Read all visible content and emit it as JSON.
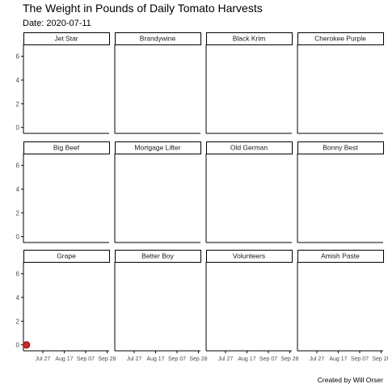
{
  "title": "The Weight in Pounds of Daily Tomato Harvests",
  "subtitle": "Date: 2020-07-11",
  "caption": "Created by Will Orser",
  "colors": {
    "point": "#cc0000",
    "axis": "#000000",
    "strip_border": "#000000",
    "tick_text": "#4d4d4d"
  },
  "chart_data": {
    "type": "scatter",
    "facet_layout": {
      "rows": 3,
      "cols": 4
    },
    "facets": [
      {
        "name": "Jet Star",
        "points": []
      },
      {
        "name": "Brandywine",
        "points": []
      },
      {
        "name": "Black Krim",
        "points": []
      },
      {
        "name": "Cherokee Purple",
        "points": []
      },
      {
        "name": "Big Beef",
        "points": []
      },
      {
        "name": "Mortgage Lifter",
        "points": []
      },
      {
        "name": "Old German",
        "points": []
      },
      {
        "name": "Bonny Best",
        "points": []
      },
      {
        "name": "Grape",
        "points": [
          {
            "x": "2020-07-11",
            "y": 0
          }
        ]
      },
      {
        "name": "Better Boy",
        "points": []
      },
      {
        "name": "Volunteers",
        "points": []
      },
      {
        "name": "Amish Paste",
        "points": []
      }
    ],
    "x_range": [
      "2020-07-08",
      "2020-09-30"
    ],
    "x_ticks": [
      {
        "value": "2020-07-27",
        "label": "Jul 27"
      },
      {
        "value": "2020-08-17",
        "label": "Aug 17"
      },
      {
        "value": "2020-09-07",
        "label": "Sep 07"
      },
      {
        "value": "2020-09-28",
        "label": "Sep 28"
      }
    ],
    "y_range": [
      -0.5,
      7
    ],
    "y_ticks": [
      0,
      2,
      4,
      6
    ],
    "grid": false,
    "xlabel": "",
    "ylabel": ""
  }
}
